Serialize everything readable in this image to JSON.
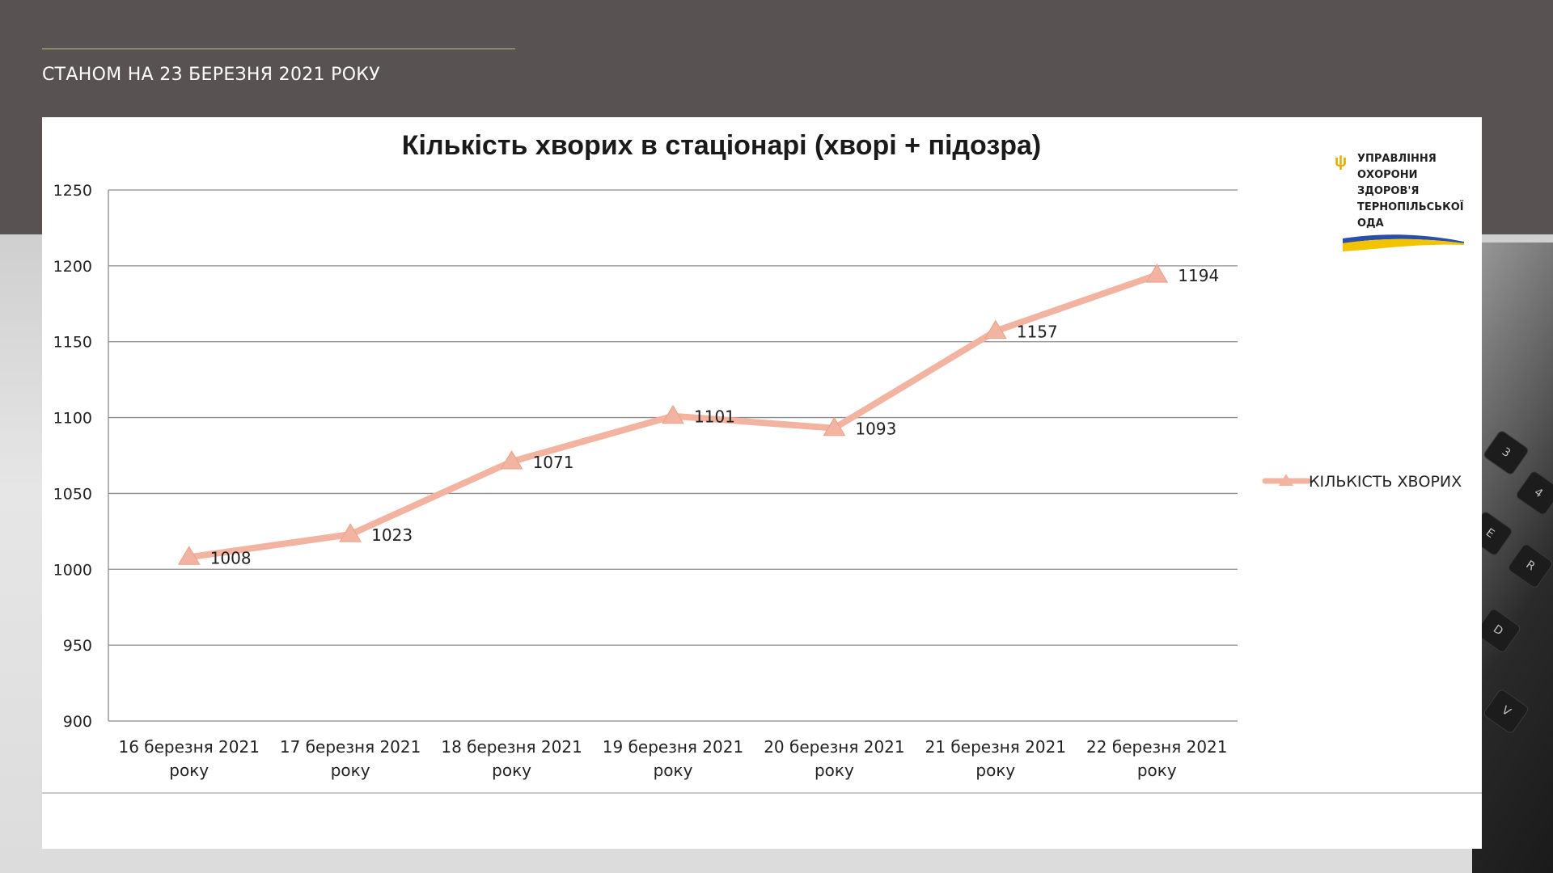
{
  "header": {
    "subtitle": "СТАНОМ НА 23 БЕРЕЗНЯ 2021 РОКУ"
  },
  "logo": {
    "lines": [
      "УПРАВЛІННЯ",
      "ОХОРОНИ",
      "ЗДОРОВ'Я",
      "ТЕРНОПІЛЬСЬКОЇ",
      "ОДА"
    ],
    "colors": {
      "blue": "#2b4fa8",
      "yellow": "#f2c400"
    }
  },
  "keyboard_keys": [
    "3",
    "E",
    "R",
    "D",
    "V",
    "4"
  ],
  "chart_data": {
    "type": "line",
    "title": "Кількість хворих в стаціонарі (хворі + підозра)",
    "categories": [
      [
        "16 березня 2021",
        "року"
      ],
      [
        "17 березня 2021",
        "року"
      ],
      [
        "18 березня 2021",
        "року"
      ],
      [
        "19 березня 2021",
        "року"
      ],
      [
        "20 березня 2021",
        "року"
      ],
      [
        "21 березня 2021",
        "року"
      ],
      [
        "22 березня 2021",
        "року"
      ]
    ],
    "series": [
      {
        "name": "КІЛЬКІСТЬ ХВОРИХ",
        "values": [
          1008,
          1023,
          1071,
          1101,
          1093,
          1157,
          1194
        ],
        "color": "#f2b4a0"
      }
    ],
    "ylim": [
      900,
      1250
    ],
    "yticks": [
      900,
      950,
      1000,
      1050,
      1100,
      1150,
      1200,
      1250
    ],
    "grid": true,
    "legend": "right",
    "data_labels": true
  }
}
